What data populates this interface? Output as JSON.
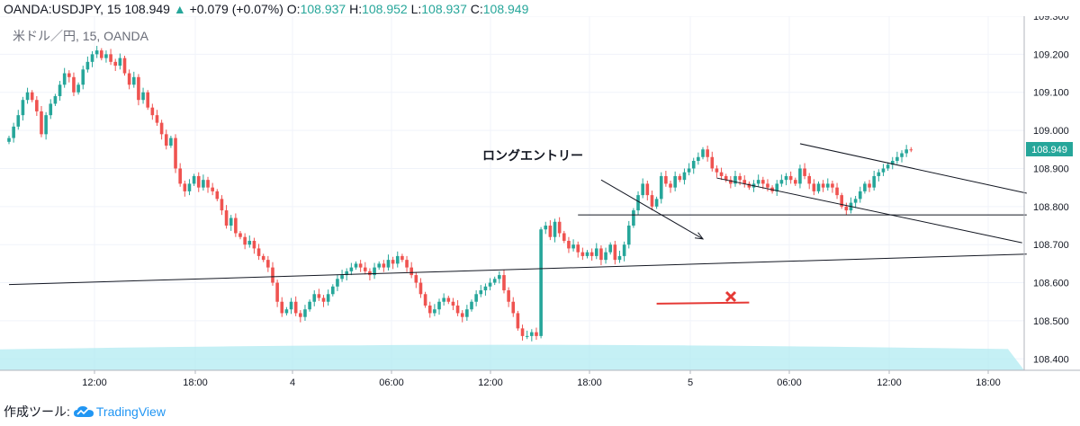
{
  "header": {
    "symbol": "OANDA:USDJPY, 15",
    "last": "108.949",
    "change": "+0.079 (+0.07%)",
    "o_label": "O:",
    "o": "108.937",
    "h_label": "H:",
    "h": "108.952",
    "l_label": "L:",
    "l": "108.937",
    "c_label": "C:",
    "c": "108.949"
  },
  "watermark": "米ドル／円, 15, OANDA",
  "annotation": "ロングエントリー",
  "price_badge": "108.949",
  "footer": {
    "made_with": "作成ツール:",
    "brand": "TradingView"
  },
  "colors": {
    "up": "#26a69a",
    "down": "#ef5350",
    "badge": "#26a69a",
    "cloud": "#b2ebf2",
    "red_line": "#e53935"
  },
  "chart_data": {
    "type": "candlestick",
    "title": "",
    "ylim": [
      108.37,
      109.3
    ],
    "y_ticks": [
      "109.300",
      "109.200",
      "109.100",
      "109.000",
      "108.900",
      "108.800",
      "108.700",
      "108.600",
      "108.500",
      "108.400"
    ],
    "x_ticks": [
      "12:00",
      "18:00",
      "4",
      "06:00",
      "12:00",
      "18:00",
      "5",
      "06:00",
      "12:00",
      "18:00"
    ],
    "series": [
      {
        "close": [
          108.98,
          109.01,
          109.04,
          109.08,
          109.1,
          109.08,
          109.05,
          108.99,
          109.04,
          109.07,
          109.09,
          109.12,
          109.15,
          109.14,
          109.1,
          109.12,
          109.16,
          109.18,
          109.2,
          109.21,
          109.19,
          109.2,
          109.18,
          109.17,
          109.19,
          109.15,
          109.12,
          109.14,
          109.08,
          109.1,
          109.06,
          109.04,
          109.02,
          108.99,
          108.96,
          108.98,
          108.9,
          108.86,
          108.84,
          108.86,
          108.88,
          108.85,
          108.87,
          108.85,
          108.84,
          108.82,
          108.79,
          108.75,
          108.77,
          108.73,
          108.72,
          108.7,
          108.71,
          108.69,
          108.67,
          108.66,
          108.64,
          108.6,
          108.55,
          108.52,
          108.53,
          108.55,
          108.52,
          108.51,
          108.53,
          108.55,
          108.57,
          108.56,
          108.55,
          108.57,
          108.59,
          108.61,
          108.62,
          108.63,
          108.64,
          108.65,
          108.64,
          108.63,
          108.62,
          108.64,
          108.65,
          108.64,
          108.66,
          108.65,
          108.67,
          108.66,
          108.64,
          108.62,
          108.6,
          108.57,
          108.54,
          108.52,
          108.53,
          108.55,
          108.56,
          108.55,
          108.54,
          108.52,
          108.51,
          108.53,
          108.55,
          108.57,
          108.58,
          108.59,
          108.6,
          108.61,
          108.62,
          108.58,
          108.55,
          108.52,
          108.48,
          108.46,
          108.46,
          108.47,
          108.46,
          108.74,
          108.75,
          108.72,
          108.76,
          108.73,
          108.71,
          108.69,
          108.7,
          108.68,
          108.67,
          108.68,
          108.67,
          108.69,
          108.66,
          108.68,
          108.7,
          108.66,
          108.67,
          108.7,
          108.75,
          108.79,
          108.83,
          108.86,
          108.83,
          108.8,
          108.82,
          108.88,
          108.86,
          108.85,
          108.88,
          108.87,
          108.89,
          108.9,
          108.92,
          108.93,
          108.95,
          108.93,
          108.9,
          108.89,
          108.88,
          108.87,
          108.86,
          108.88,
          108.87,
          108.86,
          108.85,
          108.86,
          108.87,
          108.86,
          108.85,
          108.84,
          108.86,
          108.87,
          108.88,
          108.87,
          108.86,
          108.9,
          108.88,
          108.86,
          108.84,
          108.86,
          108.85,
          108.86,
          108.85,
          108.83,
          108.8,
          108.79,
          108.81,
          108.82,
          108.84,
          108.86,
          108.85,
          108.88,
          108.89,
          108.9,
          108.91,
          108.92,
          108.93,
          108.94,
          108.95,
          108.949
        ]
      }
    ],
    "lines": [
      {
        "name": "support-trendline",
        "p1": [
          0,
          108.595
        ],
        "p2": [
          220,
          108.675
        ]
      },
      {
        "name": "horizontal-level",
        "p1": [
          123,
          108.778
        ],
        "p2": [
          220,
          108.778
        ]
      },
      {
        "name": "channel-upper",
        "p1": [
          171,
          108.965
        ],
        "p2": [
          220,
          108.835
        ]
      },
      {
        "name": "channel-lower",
        "p1": [
          153,
          108.875
        ],
        "p2": [
          219,
          108.705
        ]
      },
      {
        "name": "entry-arrow",
        "p1": [
          128,
          108.87
        ],
        "p2": [
          150,
          108.715
        ]
      },
      {
        "name": "stop-line",
        "p1": [
          140,
          108.545
        ],
        "p2": [
          160,
          108.548
        ]
      }
    ]
  }
}
